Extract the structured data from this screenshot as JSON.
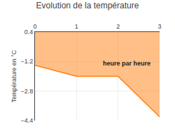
{
  "chart_data": {
    "type": "line",
    "title": "Evolution de la température",
    "ylabel": "Température en °C",
    "annotations": [
      {
        "text": "heure par heure",
        "x": 1.6,
        "y": -1.3
      }
    ],
    "x": [
      0,
      1,
      2,
      3
    ],
    "values": [
      -1.4,
      -2.0,
      -2.0,
      -4.2
    ],
    "xlim": [
      0,
      3
    ],
    "ylim": [
      -4.4,
      0.4
    ],
    "xticks": [
      0,
      1,
      2,
      3
    ],
    "yticks": [
      0.4,
      -1.2,
      -2.8,
      -4.4
    ],
    "grid": true
  }
}
